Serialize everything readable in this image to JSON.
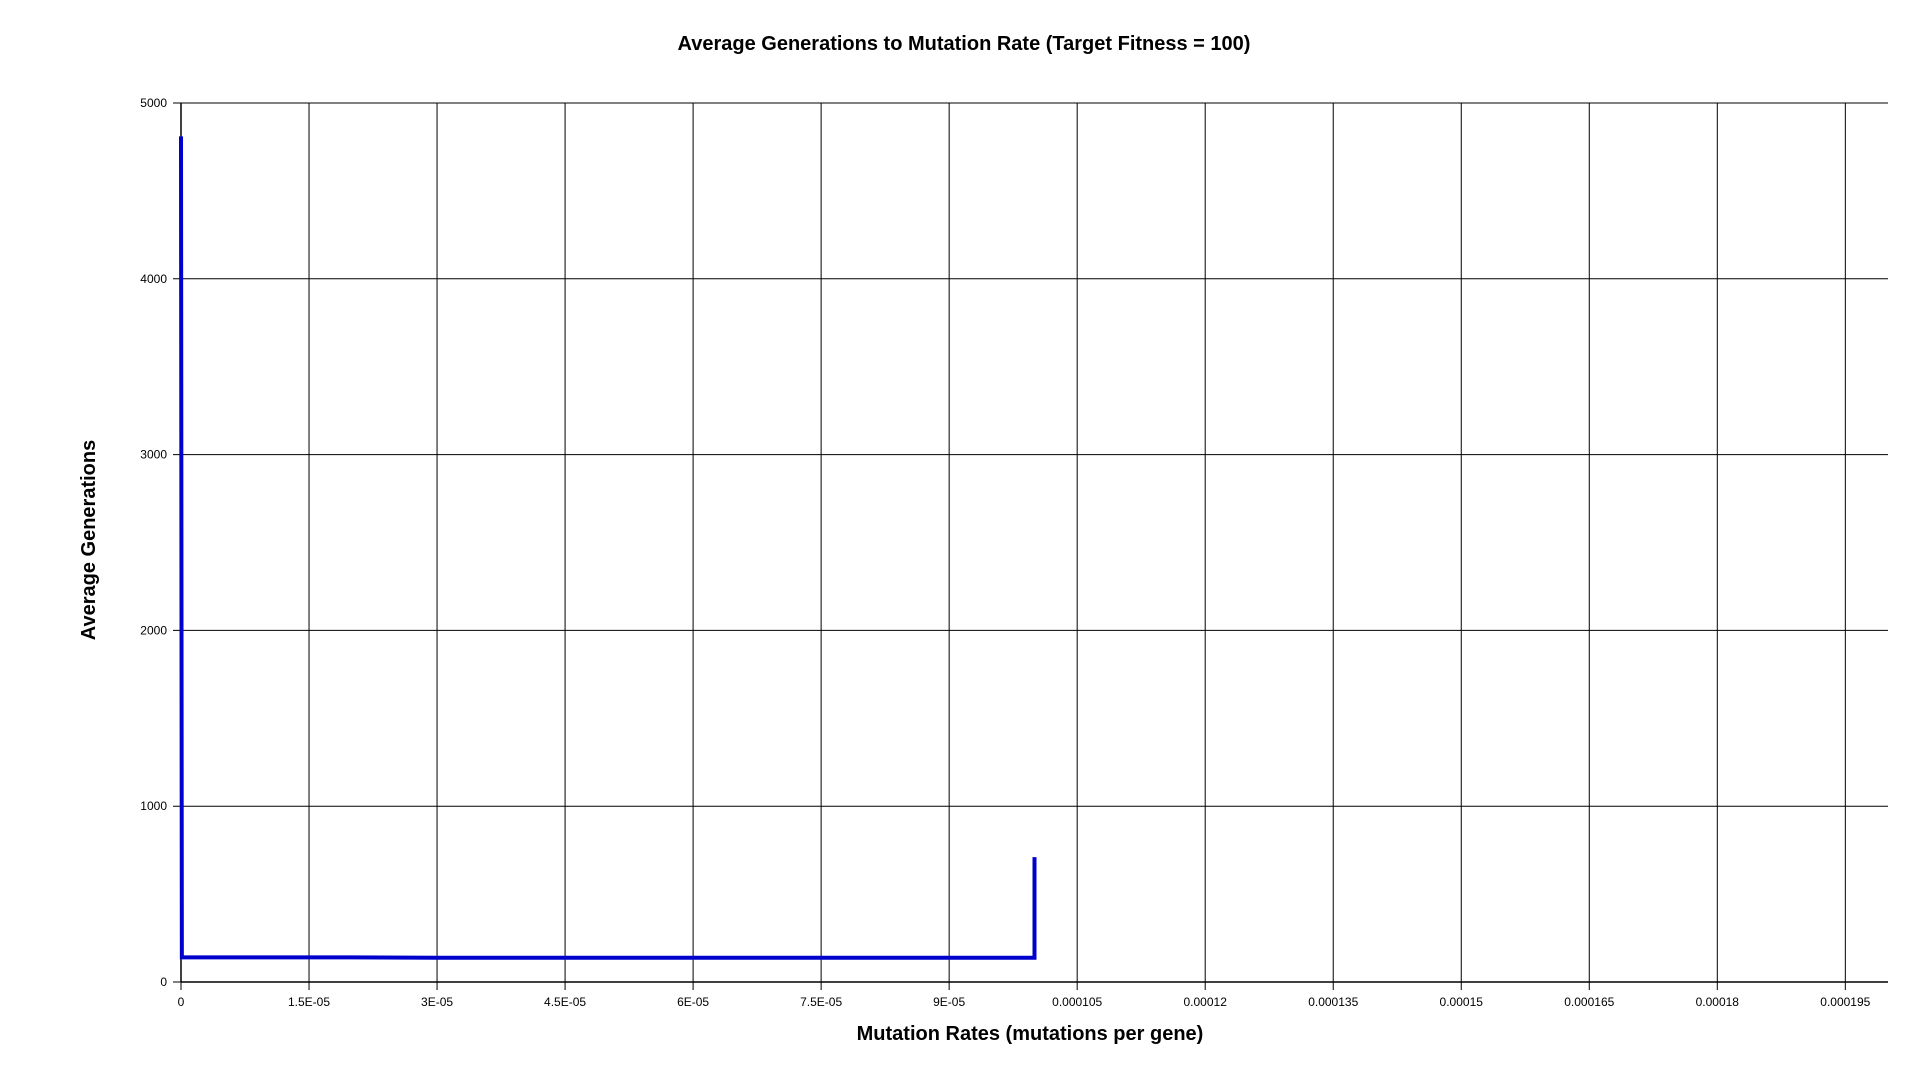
{
  "chart_data": {
    "type": "line",
    "title": "Average Generations to Mutation Rate (Target Fitness = 100)",
    "xlabel": "Mutation Rates (mutations per gene)",
    "ylabel": "Average Generations",
    "xlim": [
      0,
      0.0002
    ],
    "ylim": [
      0,
      5000
    ],
    "grid": true,
    "x_ticks": [
      0,
      1.5e-05,
      3e-05,
      4.5e-05,
      6e-05,
      7.5e-05,
      9e-05,
      0.000105,
      0.00012,
      0.000135,
      0.00015,
      0.000165,
      0.00018,
      0.000195
    ],
    "x_tick_labels": [
      "0",
      "1.5E-05",
      "3E-05",
      "4.5E-05",
      "6E-05",
      "7.5E-05",
      "9E-05",
      "0.000105",
      "0.00012",
      "0.000135",
      "0.00015",
      "0.000165",
      "0.00018",
      "0.000195"
    ],
    "y_ticks": [
      0,
      1000,
      2000,
      3000,
      4000,
      5000
    ],
    "y_tick_labels": [
      "0",
      "1000",
      "2000",
      "3000",
      "4000",
      "5000"
    ],
    "series": [
      {
        "color": "#0000cc",
        "x": [
          0,
          1e-07,
          1e-06,
          1e-05,
          2e-05,
          3e-05,
          4e-05,
          5e-05,
          6e-05,
          7e-05,
          8e-05,
          9e-05,
          0.0001,
          0.0001
        ],
        "y": [
          4810,
          140,
          140,
          140,
          140,
          138,
          138,
          138,
          138,
          138,
          138,
          138,
          138,
          710
        ]
      }
    ]
  }
}
